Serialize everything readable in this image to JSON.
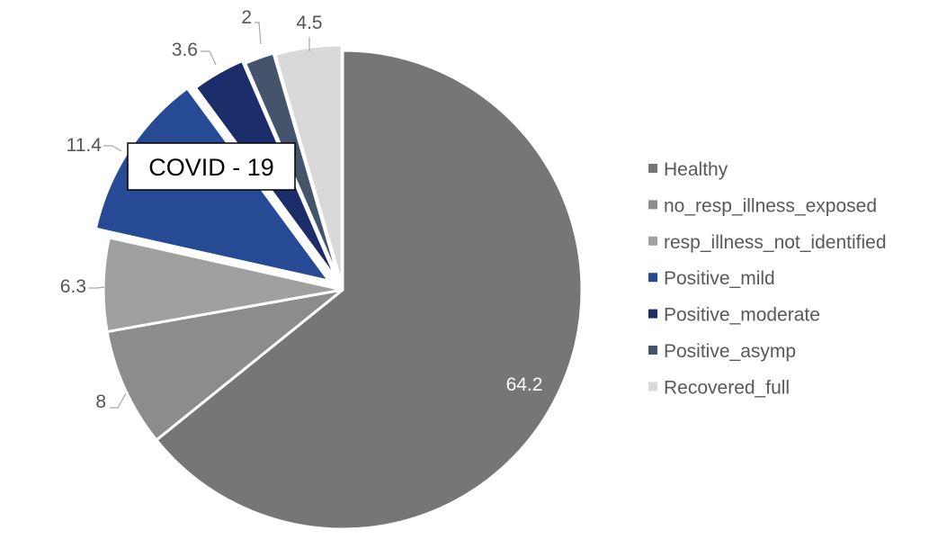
{
  "chart_data": {
    "type": "pie",
    "title": "",
    "categories": [
      "Healthy",
      "no_resp_illness_exposed",
      "resp_illness_not_identified",
      "Positive_mild",
      "Positive_moderate",
      "Positive_asymp",
      "Recovered_full"
    ],
    "values": [
      64.2,
      8,
      6.3,
      11.4,
      3.6,
      2,
      4.5
    ],
    "value_labels": [
      "64.2",
      "8",
      "6.3",
      "11.4",
      "3.6",
      "2",
      "4.5"
    ],
    "colors": [
      "#767676",
      "#8c8c8c",
      "#a0a0a0",
      "#264b94",
      "#1c2e6a",
      "#44546a",
      "#d9d9d9"
    ],
    "exploded_categories": [
      "Positive_mild",
      "Positive_moderate",
      "Positive_asymp",
      "Recovered_full"
    ],
    "legend_position": "right",
    "annotation": "COVID - 19"
  }
}
